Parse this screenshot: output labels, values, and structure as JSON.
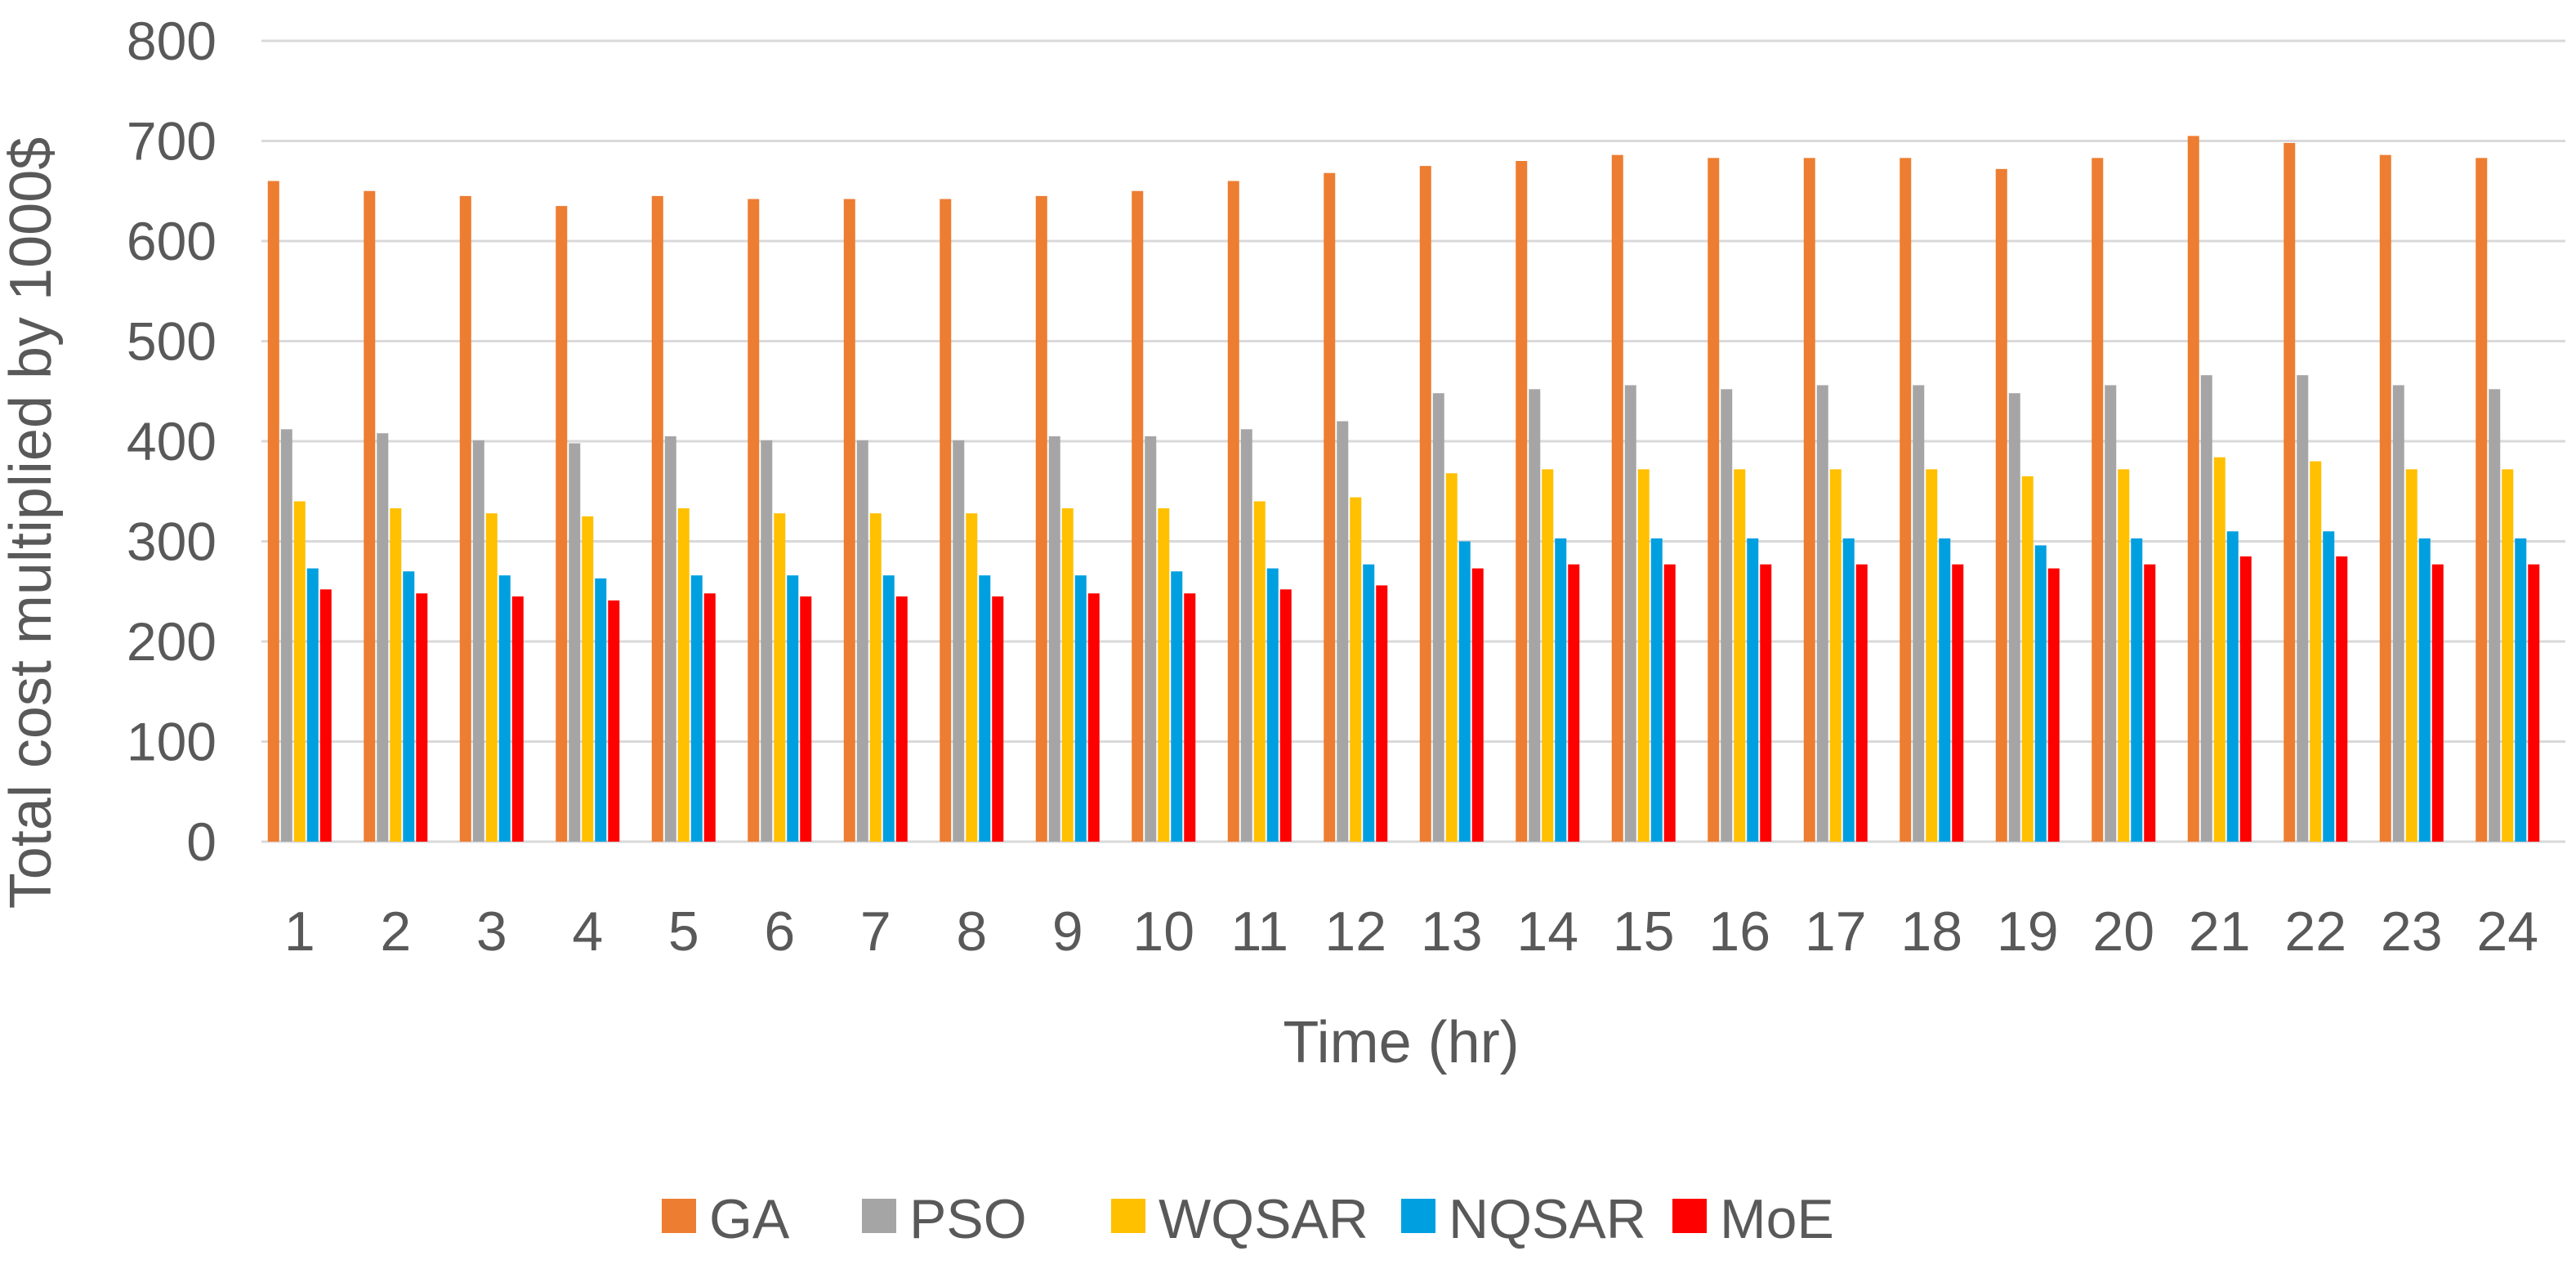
{
  "chart_data": {
    "type": "bar",
    "title": "",
    "xlabel": "Time (hr)",
    "ylabel": "Total cost multiplied by  1000$",
    "ylim": [
      0,
      800
    ],
    "yticks": [
      0,
      100,
      200,
      300,
      400,
      500,
      600,
      700,
      800
    ],
    "grid": true,
    "legend_position": "bottom",
    "categories": [
      "1",
      "2",
      "3",
      "4",
      "5",
      "6",
      "7",
      "8",
      "9",
      "10",
      "11",
      "12",
      "13",
      "14",
      "15",
      "16",
      "17",
      "18",
      "19",
      "20",
      "21",
      "22",
      "23",
      "24"
    ],
    "series": [
      {
        "name": "GA",
        "color": "#ED7D31",
        "values": [
          660,
          650,
          645,
          635,
          645,
          642,
          642,
          642,
          645,
          650,
          660,
          668,
          675,
          680,
          686,
          683,
          683,
          683,
          672,
          683,
          705,
          698,
          686,
          683
        ]
      },
      {
        "name": "PSO",
        "color": "#A5A5A5",
        "values": [
          412,
          408,
          401,
          398,
          405,
          401,
          401,
          401,
          405,
          405,
          412,
          420,
          448,
          452,
          456,
          452,
          456,
          456,
          448,
          456,
          466,
          466,
          456,
          452
        ]
      },
      {
        "name": "WQSAR",
        "color": "#FFC000",
        "values": [
          340,
          333,
          328,
          325,
          333,
          328,
          328,
          328,
          333,
          333,
          340,
          344,
          368,
          372,
          372,
          372,
          372,
          372,
          365,
          372,
          384,
          380,
          372,
          372
        ]
      },
      {
        "name": "NQSAR",
        "color": "#00A0E0",
        "values": [
          273,
          270,
          266,
          263,
          266,
          266,
          266,
          266,
          266,
          270,
          273,
          277,
          300,
          303,
          303,
          303,
          303,
          303,
          296,
          303,
          310,
          310,
          303,
          303
        ]
      },
      {
        "name": "MoE",
        "color": "#FF0000",
        "values": [
          252,
          248,
          245,
          241,
          248,
          245,
          245,
          245,
          248,
          248,
          252,
          256,
          273,
          277,
          277,
          277,
          277,
          277,
          273,
          277,
          285,
          285,
          277,
          277
        ]
      }
    ]
  }
}
